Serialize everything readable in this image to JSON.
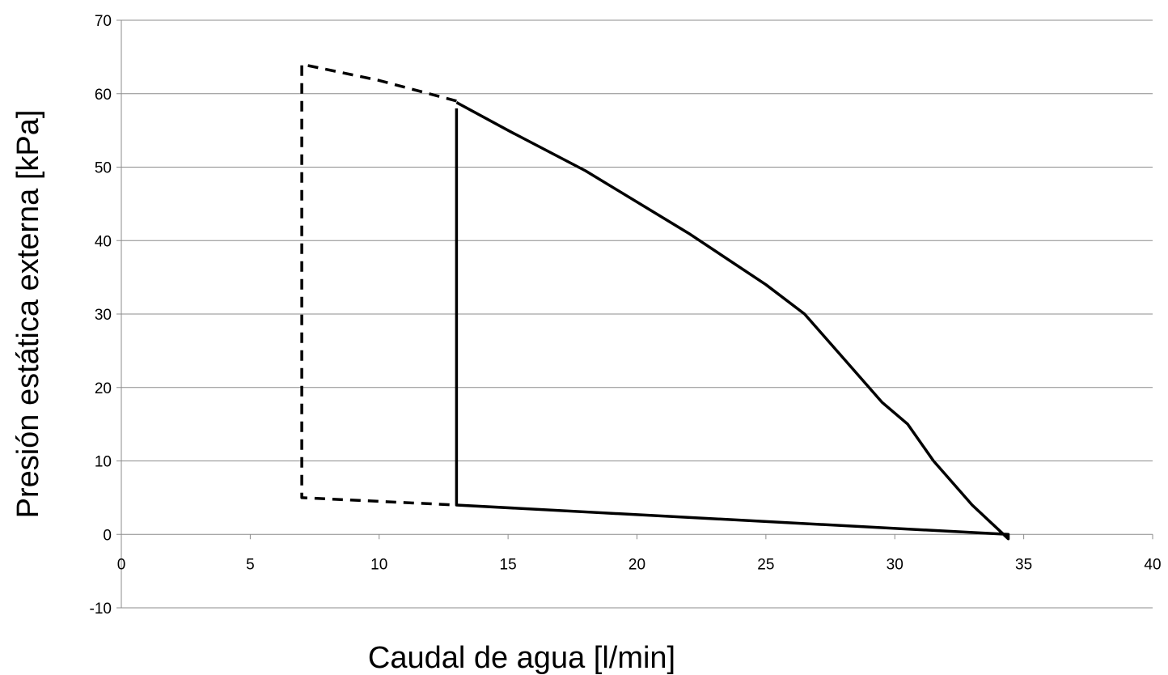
{
  "chart_data": {
    "type": "line",
    "title": "",
    "xlabel": "Caudal de agua [l/min]",
    "ylabel": "Presión estática externa [kPa]",
    "xlim": [
      0,
      40
    ],
    "ylim": [
      -10,
      70
    ],
    "xticks": [
      0,
      5,
      10,
      15,
      20,
      25,
      30,
      35,
      40
    ],
    "yticks": [
      -10,
      0,
      10,
      20,
      30,
      40,
      50,
      60,
      70
    ],
    "grid": "horizontal",
    "legend": "none",
    "series": [
      {
        "style": "dashed",
        "color": "#000000",
        "points": [
          [
            13,
            59
          ],
          [
            10,
            61.8
          ],
          [
            7,
            64
          ],
          [
            7,
            5
          ],
          [
            13,
            4
          ]
        ]
      },
      {
        "style": "solid",
        "color": "#000000",
        "points": [
          [
            13,
            58
          ],
          [
            13,
            4
          ],
          [
            34.4,
            0
          ],
          [
            34.4,
            -0.6
          ],
          [
            33,
            4
          ],
          [
            31.5,
            10
          ],
          [
            30.5,
            15
          ],
          [
            29.5,
            18
          ],
          [
            28,
            24
          ],
          [
            26.5,
            30
          ],
          [
            25,
            34
          ],
          [
            22,
            41
          ],
          [
            18,
            49.5
          ],
          [
            15,
            55
          ],
          [
            13,
            58.8
          ]
        ]
      }
    ]
  }
}
